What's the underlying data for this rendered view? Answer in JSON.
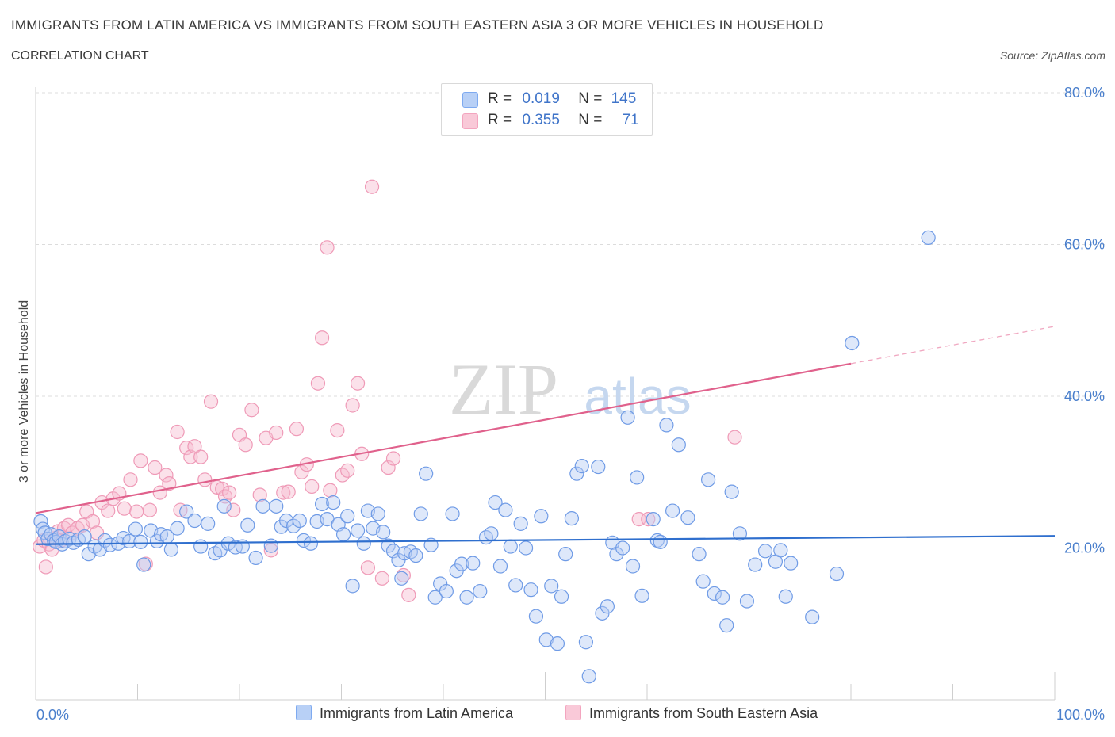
{
  "title": "IMMIGRANTS FROM LATIN AMERICA VS IMMIGRANTS FROM SOUTH EASTERN ASIA 3 OR MORE VEHICLES IN HOUSEHOLD",
  "subtitle": "CORRELATION CHART",
  "source": "Source: ZipAtlas.com",
  "watermark": {
    "zip": "ZIP",
    "atlas": "atlas"
  },
  "legend": {
    "r_label": "R =",
    "n_label": "N =",
    "rows": [
      {
        "r": "0.019",
        "n": "145"
      },
      {
        "r": "0.355",
        "n": "71"
      }
    ]
  },
  "chart_data": {
    "type": "scatter",
    "xlabel": "",
    "ylabel": "3 or more Vehicles in Household",
    "xlim": [
      0,
      100
    ],
    "ylim": [
      0,
      80
    ],
    "x_tick_labels": [
      "0.0%",
      "100.0%"
    ],
    "y_ticks": [
      20,
      40,
      60,
      80
    ],
    "y_tick_labels": [
      "20.0%",
      "40.0%",
      "60.0%",
      "80.0%"
    ],
    "grid": true,
    "legend_position": "bottom",
    "series": [
      {
        "name": "Immigrants from Latin America",
        "color": "#7eaaf0",
        "line_color": "#2f6fce",
        "trend": {
          "x0": 0,
          "y0": 20.5,
          "x1": 100,
          "y1": 21.6
        },
        "points": [
          [
            0.5,
            23.5
          ],
          [
            0.7,
            22.5
          ],
          [
            0.9,
            22.0
          ],
          [
            1.2,
            21.2
          ],
          [
            1.5,
            21.8
          ],
          [
            1.8,
            21.0
          ],
          [
            2.0,
            20.8
          ],
          [
            2.3,
            21.5
          ],
          [
            2.6,
            20.5
          ],
          [
            2.9,
            20.9
          ],
          [
            3.3,
            21.2
          ],
          [
            3.7,
            20.7
          ],
          [
            4.2,
            21.1
          ],
          [
            4.8,
            21.5
          ],
          [
            5.2,
            19.2
          ],
          [
            5.8,
            20.2
          ],
          [
            6.3,
            19.8
          ],
          [
            6.8,
            21.0
          ],
          [
            7.3,
            20.4
          ],
          [
            8.1,
            20.6
          ],
          [
            8.6,
            21.3
          ],
          [
            9.2,
            20.9
          ],
          [
            9.8,
            22.5
          ],
          [
            10.3,
            20.8
          ],
          [
            10.6,
            17.8
          ],
          [
            11.3,
            22.3
          ],
          [
            11.9,
            20.9
          ],
          [
            12.3,
            21.8
          ],
          [
            12.9,
            21.5
          ],
          [
            13.3,
            19.8
          ],
          [
            13.9,
            22.6
          ],
          [
            14.8,
            24.8
          ],
          [
            15.6,
            23.6
          ],
          [
            16.2,
            20.2
          ],
          [
            16.9,
            23.2
          ],
          [
            17.6,
            19.3
          ],
          [
            18.1,
            19.7
          ],
          [
            18.5,
            25.5
          ],
          [
            18.9,
            20.6
          ],
          [
            19.6,
            20.1
          ],
          [
            20.3,
            20.2
          ],
          [
            20.8,
            23.0
          ],
          [
            21.6,
            18.7
          ],
          [
            22.3,
            25.5
          ],
          [
            23.1,
            20.3
          ],
          [
            23.6,
            25.5
          ],
          [
            24.1,
            22.8
          ],
          [
            24.6,
            23.6
          ],
          [
            25.3,
            22.9
          ],
          [
            25.9,
            23.6
          ],
          [
            26.3,
            21.0
          ],
          [
            27.0,
            20.6
          ],
          [
            27.6,
            23.5
          ],
          [
            28.1,
            25.8
          ],
          [
            28.6,
            23.8
          ],
          [
            29.2,
            26.0
          ],
          [
            29.7,
            23.1
          ],
          [
            30.2,
            21.8
          ],
          [
            30.6,
            24.2
          ],
          [
            31.1,
            15.0
          ],
          [
            31.6,
            22.3
          ],
          [
            32.2,
            20.6
          ],
          [
            32.6,
            24.9
          ],
          [
            33.1,
            22.6
          ],
          [
            33.6,
            24.5
          ],
          [
            34.1,
            22.1
          ],
          [
            34.6,
            20.3
          ],
          [
            35.1,
            19.6
          ],
          [
            35.6,
            18.4
          ],
          [
            35.9,
            16.0
          ],
          [
            36.2,
            19.3
          ],
          [
            36.8,
            19.5
          ],
          [
            37.3,
            19.0
          ],
          [
            37.8,
            24.5
          ],
          [
            38.3,
            29.8
          ],
          [
            38.8,
            20.4
          ],
          [
            39.2,
            13.5
          ],
          [
            39.7,
            15.3
          ],
          [
            40.3,
            14.3
          ],
          [
            40.9,
            24.5
          ],
          [
            41.3,
            17.0
          ],
          [
            41.8,
            17.9
          ],
          [
            42.3,
            13.5
          ],
          [
            42.9,
            18.0
          ],
          [
            43.6,
            14.3
          ],
          [
            44.2,
            21.4
          ],
          [
            44.7,
            21.9
          ],
          [
            45.1,
            26.0
          ],
          [
            45.6,
            17.6
          ],
          [
            46.1,
            25.0
          ],
          [
            46.6,
            20.2
          ],
          [
            47.1,
            15.1
          ],
          [
            47.6,
            23.2
          ],
          [
            48.1,
            20.0
          ],
          [
            48.6,
            14.5
          ],
          [
            49.1,
            11.0
          ],
          [
            49.6,
            24.2
          ],
          [
            50.1,
            7.9
          ],
          [
            50.6,
            15.0
          ],
          [
            51.2,
            7.4
          ],
          [
            51.6,
            13.6
          ],
          [
            52.0,
            19.2
          ],
          [
            52.6,
            23.9
          ],
          [
            53.1,
            29.8
          ],
          [
            53.6,
            30.8
          ],
          [
            54.0,
            7.6
          ],
          [
            54.3,
            3.1
          ],
          [
            55.2,
            30.7
          ],
          [
            55.6,
            11.4
          ],
          [
            56.1,
            12.3
          ],
          [
            56.6,
            20.7
          ],
          [
            57.0,
            19.2
          ],
          [
            57.6,
            20.0
          ],
          [
            58.1,
            37.2
          ],
          [
            58.6,
            17.6
          ],
          [
            59.0,
            29.3
          ],
          [
            59.5,
            13.7
          ],
          [
            60.6,
            23.8
          ],
          [
            61.0,
            21.0
          ],
          [
            61.3,
            20.8
          ],
          [
            61.9,
            36.2
          ],
          [
            62.5,
            24.9
          ],
          [
            63.1,
            33.6
          ],
          [
            64.0,
            24.0
          ],
          [
            65.1,
            19.2
          ],
          [
            65.5,
            15.6
          ],
          [
            66.0,
            29.0
          ],
          [
            66.6,
            14.0
          ],
          [
            67.4,
            13.5
          ],
          [
            67.8,
            9.8
          ],
          [
            68.3,
            27.4
          ],
          [
            69.1,
            21.9
          ],
          [
            69.8,
            13.0
          ],
          [
            70.6,
            17.8
          ],
          [
            71.6,
            19.6
          ],
          [
            72.6,
            18.2
          ],
          [
            73.1,
            19.7
          ],
          [
            73.6,
            13.6
          ],
          [
            74.1,
            18.0
          ],
          [
            76.2,
            10.9
          ],
          [
            78.6,
            16.6
          ],
          [
            80.1,
            47.0
          ],
          [
            87.6,
            60.9
          ]
        ]
      },
      {
        "name": "Immigrants from South Eastern Asia",
        "color": "#f3a5bf",
        "line_color": "#e0618c",
        "trend": {
          "x0": 0,
          "y0": 24.6,
          "x1": 80,
          "y1": 44.3
        },
        "trend_dashed_to": {
          "x": 100,
          "y": 49.2
        },
        "points": [
          [
            0.4,
            20.2
          ],
          [
            0.8,
            21.0
          ],
          [
            1.0,
            17.5
          ],
          [
            1.3,
            20.5
          ],
          [
            1.6,
            19.8
          ],
          [
            1.9,
            21.3
          ],
          [
            2.2,
            22.2
          ],
          [
            2.5,
            21.0
          ],
          [
            2.8,
            22.6
          ],
          [
            3.2,
            23.0
          ],
          [
            3.6,
            22.0
          ],
          [
            4.1,
            22.6
          ],
          [
            4.6,
            23.0
          ],
          [
            5.0,
            24.8
          ],
          [
            5.6,
            23.5
          ],
          [
            6.0,
            22.0
          ],
          [
            6.5,
            26.0
          ],
          [
            7.1,
            24.9
          ],
          [
            7.6,
            26.5
          ],
          [
            8.2,
            27.2
          ],
          [
            8.7,
            25.2
          ],
          [
            9.3,
            29.0
          ],
          [
            9.9,
            24.8
          ],
          [
            10.3,
            31.5
          ],
          [
            10.8,
            17.9
          ],
          [
            11.2,
            25.0
          ],
          [
            11.7,
            30.6
          ],
          [
            12.2,
            27.3
          ],
          [
            12.8,
            29.6
          ],
          [
            13.1,
            28.5
          ],
          [
            13.9,
            35.3
          ],
          [
            14.2,
            25.0
          ],
          [
            14.8,
            33.2
          ],
          [
            15.2,
            32.0
          ],
          [
            15.6,
            33.4
          ],
          [
            16.2,
            32.0
          ],
          [
            16.6,
            29.0
          ],
          [
            17.2,
            39.3
          ],
          [
            17.8,
            28.0
          ],
          [
            18.3,
            27.8
          ],
          [
            18.6,
            26.8
          ],
          [
            19.0,
            27.3
          ],
          [
            19.4,
            25.0
          ],
          [
            20.0,
            34.9
          ],
          [
            20.6,
            33.6
          ],
          [
            21.2,
            38.2
          ],
          [
            22.0,
            27.0
          ],
          [
            22.6,
            34.5
          ],
          [
            23.1,
            19.7
          ],
          [
            23.6,
            35.2
          ],
          [
            24.3,
            27.3
          ],
          [
            24.8,
            27.4
          ],
          [
            25.6,
            35.7
          ],
          [
            26.1,
            30.0
          ],
          [
            26.6,
            31.0
          ],
          [
            27.1,
            28.1
          ],
          [
            27.7,
            41.7
          ],
          [
            28.1,
            47.7
          ],
          [
            28.6,
            59.6
          ],
          [
            28.9,
            27.6
          ],
          [
            29.6,
            35.5
          ],
          [
            30.1,
            29.6
          ],
          [
            30.6,
            30.2
          ],
          [
            31.1,
            38.8
          ],
          [
            31.6,
            41.7
          ],
          [
            32.0,
            32.4
          ],
          [
            32.6,
            17.4
          ],
          [
            33.0,
            67.6
          ],
          [
            34.0,
            16.0
          ],
          [
            34.6,
            30.6
          ],
          [
            35.1,
            31.8
          ],
          [
            36.1,
            16.4
          ],
          [
            36.6,
            13.8
          ],
          [
            59.2,
            23.8
          ],
          [
            60.1,
            23.8
          ],
          [
            68.6,
            34.6
          ]
        ]
      }
    ]
  }
}
